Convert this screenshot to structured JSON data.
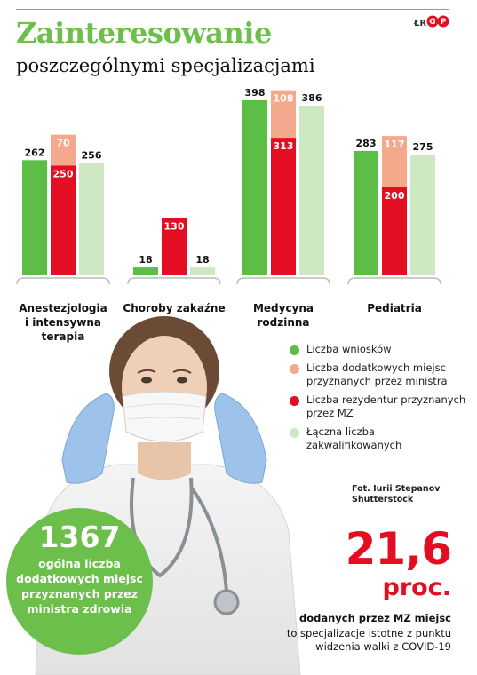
{
  "header": {
    "title": "Zainteresowanie",
    "subtitle": "poszczególnymi specjalizacjami",
    "source_tag": "ŁR",
    "logo_text": "GP"
  },
  "colors": {
    "green": "#5cbd47",
    "salmon": "#f5a98c",
    "red": "#e30e21",
    "light_green": "#cde8c2",
    "circle_green": "#6cbf4a"
  },
  "chart_data": {
    "type": "bar",
    "categories": [
      "Anestezjologia\ni intensywna\nterapia",
      "Choroby zakaźne",
      "Medycyna\nrodzinna",
      "Pediatria"
    ],
    "series": [
      {
        "name": "Liczba wniosków",
        "values": [
          262,
          18,
          398,
          283
        ]
      },
      {
        "name": "Liczba dodatkowych miejsc przyznanych przez ministra",
        "values": [
          70,
          null,
          108,
          117
        ]
      },
      {
        "name": "Liczba rezydentur przyznanych przez MZ",
        "values": [
          250,
          130,
          313,
          200
        ]
      },
      {
        "name": "Łączna liczba zakwalifikowanych",
        "values": [
          256,
          18,
          386,
          275
        ]
      }
    ],
    "stacked_note": "dodatkowe miejsca stacked on top of rezydentury",
    "ylim": [
      0,
      410
    ],
    "grid": false,
    "legend_position": "right"
  },
  "legend": [
    {
      "label": "Liczba wniosków",
      "color": "#5cbd47"
    },
    {
      "label": "Liczba dodatkowych miejsc przyznanych przez ministra",
      "color": "#f5a98c"
    },
    {
      "label": "Liczba rezydentur przyznanych przez MZ",
      "color": "#e30e21"
    },
    {
      "label": "Łączna liczba zakwalifikowanych",
      "color": "#cde8c2"
    }
  ],
  "photo_credit": {
    "line1": "Fot. Iurii Stepanov",
    "line2": "Shutterstock"
  },
  "circle_stat": {
    "value": "1367",
    "text": "ogólna liczba dodatkowych miejsc przyznanych przez ministra zdrowia"
  },
  "highlight_stat": {
    "value": "21,6",
    "unit": "proc.",
    "bold_line": "dodanych przez MZ miejsc",
    "text": "to specjalizacje istotne z punktu widzenia walki z COVID-19"
  }
}
